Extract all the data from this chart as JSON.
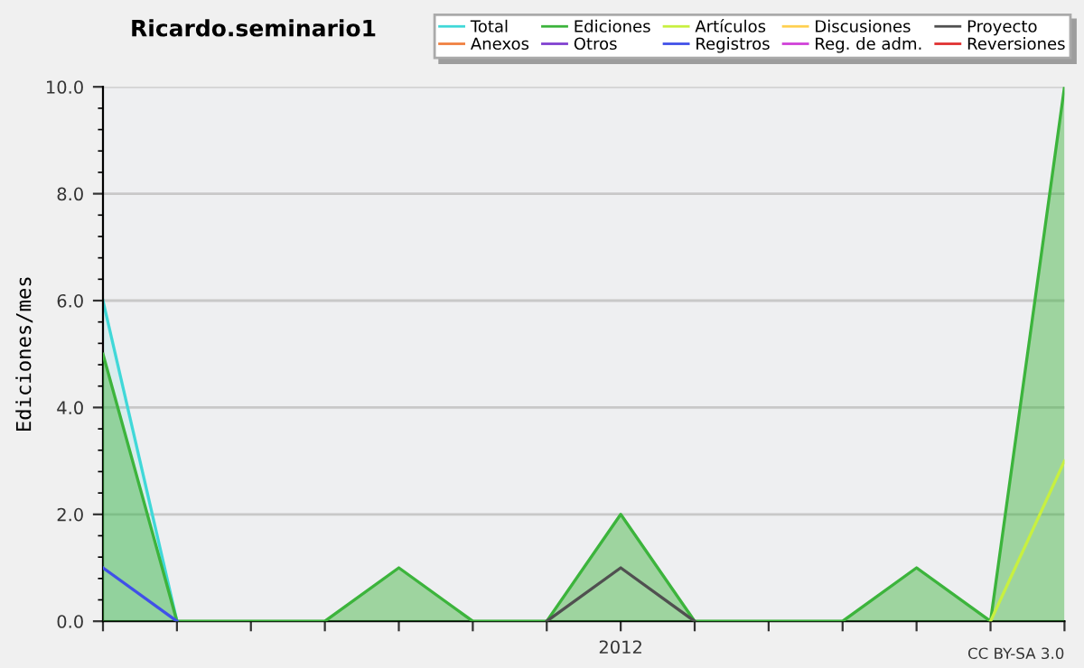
{
  "chart_data": {
    "type": "line",
    "title": "Ricardo.seminario1",
    "ylabel": "Ediciones/mes",
    "categories": [
      null,
      null,
      null,
      null,
      null,
      null,
      null,
      "2012",
      null,
      null,
      null,
      null,
      null,
      null
    ],
    "series": [
      {
        "name": "Total",
        "type": "area",
        "color": "#40d8d8",
        "values": [
          6,
          0,
          null,
          null,
          null,
          null,
          null,
          null,
          null,
          null,
          null,
          null,
          null,
          null
        ]
      },
      {
        "name": "Ediciones",
        "type": "area",
        "color": "#3cb43c",
        "values": [
          5,
          0,
          0,
          0,
          1,
          0,
          0,
          2,
          0,
          0,
          0,
          1,
          0,
          10
        ]
      },
      {
        "name": "Artículos",
        "color": "#c8f040",
        "values": [
          null,
          null,
          null,
          null,
          null,
          null,
          null,
          null,
          null,
          null,
          null,
          null,
          0,
          3
        ]
      },
      {
        "name": "Discusiones",
        "color": "#ffd050",
        "values": [
          null,
          null,
          null,
          null,
          null,
          null,
          null,
          null,
          null,
          null,
          null,
          null,
          null,
          null
        ]
      },
      {
        "name": "Proyecto",
        "color": "#505050",
        "values": [
          null,
          null,
          null,
          null,
          null,
          null,
          0,
          1,
          0,
          null,
          null,
          null,
          null,
          null
        ]
      },
      {
        "name": "Anexos",
        "color": "#f08040",
        "values": [
          null,
          null,
          null,
          null,
          null,
          null,
          null,
          null,
          null,
          null,
          null,
          null,
          null,
          null
        ]
      },
      {
        "name": "Otros",
        "color": "#8040d0",
        "values": [
          null,
          null,
          null,
          null,
          null,
          null,
          null,
          null,
          null,
          null,
          null,
          null,
          null,
          null
        ]
      },
      {
        "name": "Registros",
        "color": "#4050e8",
        "values": [
          1,
          0,
          null,
          null,
          null,
          null,
          null,
          null,
          null,
          null,
          null,
          null,
          null,
          null
        ]
      },
      {
        "name": "Reg. de adm.",
        "color": "#d040d8",
        "values": [
          null,
          null,
          null,
          null,
          null,
          null,
          null,
          null,
          null,
          null,
          null,
          null,
          null,
          null
        ]
      },
      {
        "name": "Reversiones",
        "color": "#e03030",
        "values": [
          null,
          null,
          null,
          null,
          null,
          null,
          null,
          null,
          null,
          null,
          null,
          null,
          null,
          null
        ]
      }
    ],
    "ylim": [
      0,
      10
    ],
    "yticks": [
      {
        "value": 0,
        "label": "0.0"
      },
      {
        "value": 2,
        "label": "2.0"
      },
      {
        "value": 4,
        "label": "4.0"
      },
      {
        "value": 6,
        "label": "6.0"
      },
      {
        "value": 8,
        "label": "8.0"
      },
      {
        "value": 10,
        "label": "10.0"
      }
    ],
    "grid": "y",
    "legend": "top right",
    "marker": "none",
    "annotations": [
      "CC BY-SA 3.0"
    ]
  }
}
